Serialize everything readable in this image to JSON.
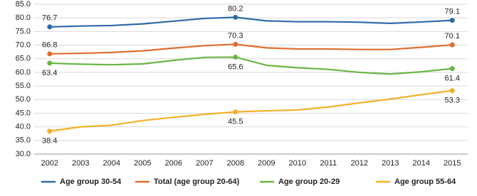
{
  "chart_data": {
    "type": "line",
    "categories": [
      "2002",
      "2003",
      "2004",
      "2005",
      "2006",
      "2007",
      "2008",
      "2009",
      "2010",
      "2011",
      "2012",
      "2013",
      "2014",
      "2015"
    ],
    "series": [
      {
        "name": "Age group 30-54",
        "color": "#2e6aa8",
        "label_position": "above",
        "values": [
          76.7,
          77.0,
          77.2,
          77.8,
          78.8,
          79.8,
          80.2,
          78.9,
          78.6,
          78.6,
          78.4,
          78.0,
          78.5,
          79.1
        ]
      },
      {
        "name": "Total (age group 20-64)",
        "color": "#e06c2f",
        "label_position": "above",
        "values": [
          66.8,
          67.0,
          67.3,
          67.9,
          68.9,
          69.8,
          70.3,
          69.0,
          68.6,
          68.6,
          68.4,
          68.4,
          69.2,
          70.1
        ]
      },
      {
        "name": "Age group 20-29",
        "color": "#6bb544",
        "label_position": "below",
        "values": [
          63.4,
          63.0,
          62.8,
          63.1,
          64.4,
          65.5,
          65.6,
          62.6,
          61.7,
          61.1,
          60.0,
          59.4,
          60.2,
          61.4
        ]
      },
      {
        "name": "Age group 55-64",
        "color": "#f2b12a",
        "label_position": "below",
        "values": [
          38.4,
          40.0,
          40.6,
          42.3,
          43.5,
          44.6,
          45.5,
          45.9,
          46.2,
          47.3,
          48.8,
          50.2,
          51.8,
          53.3
        ]
      }
    ],
    "labeled_points": [
      0,
      6,
      13
    ],
    "ylim": [
      30,
      85
    ],
    "yticks": [
      {
        "value": 30,
        "label": "30.0"
      },
      {
        "value": 35,
        "label": "35.0"
      },
      {
        "value": 40,
        "label": "40.0"
      },
      {
        "value": 45,
        "label": "45.0"
      },
      {
        "value": 50,
        "label": "50.0"
      },
      {
        "value": 55,
        "label": "55.0"
      },
      {
        "value": 60,
        "label": "60.0"
      },
      {
        "value": 65,
        "label": "65.0"
      },
      {
        "value": 70,
        "label": "70.0"
      },
      {
        "value": 75,
        "label": "75.0"
      },
      {
        "value": 80,
        "label": "80.0"
      },
      {
        "value": 85,
        "label": "85.0"
      }
    ],
    "grid": true
  }
}
